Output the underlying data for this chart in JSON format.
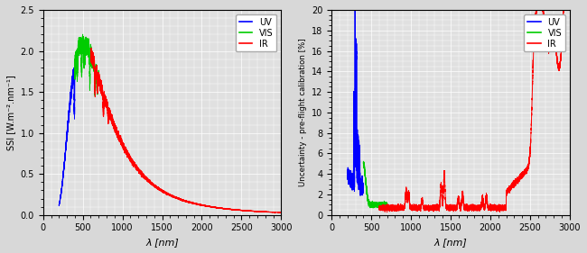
{
  "left_ylabel": "SSI [W.m⁻².nm⁻¹]",
  "right_ylabel": "Uncertainty - pre-flight calibration [%]",
  "xlabel": "λ [nm]",
  "xlim": [
    0,
    3000
  ],
  "left_ylim": [
    0,
    2.5
  ],
  "right_ylim": [
    0,
    20
  ],
  "left_yticks": [
    0,
    0.5,
    1.0,
    1.5,
    2.0,
    2.5
  ],
  "right_yticks": [
    0,
    2,
    4,
    6,
    8,
    10,
    12,
    14,
    16,
    18,
    20
  ],
  "xticks": [
    0,
    500,
    1000,
    1500,
    2000,
    2500,
    3000
  ],
  "colors": {
    "UV": "#0000ff",
    "VIS": "#00cc00",
    "IR": "#ff0000"
  },
  "background_color": "#e0e0e0",
  "grid_color": "#ffffff",
  "grid_linewidth": 0.5
}
